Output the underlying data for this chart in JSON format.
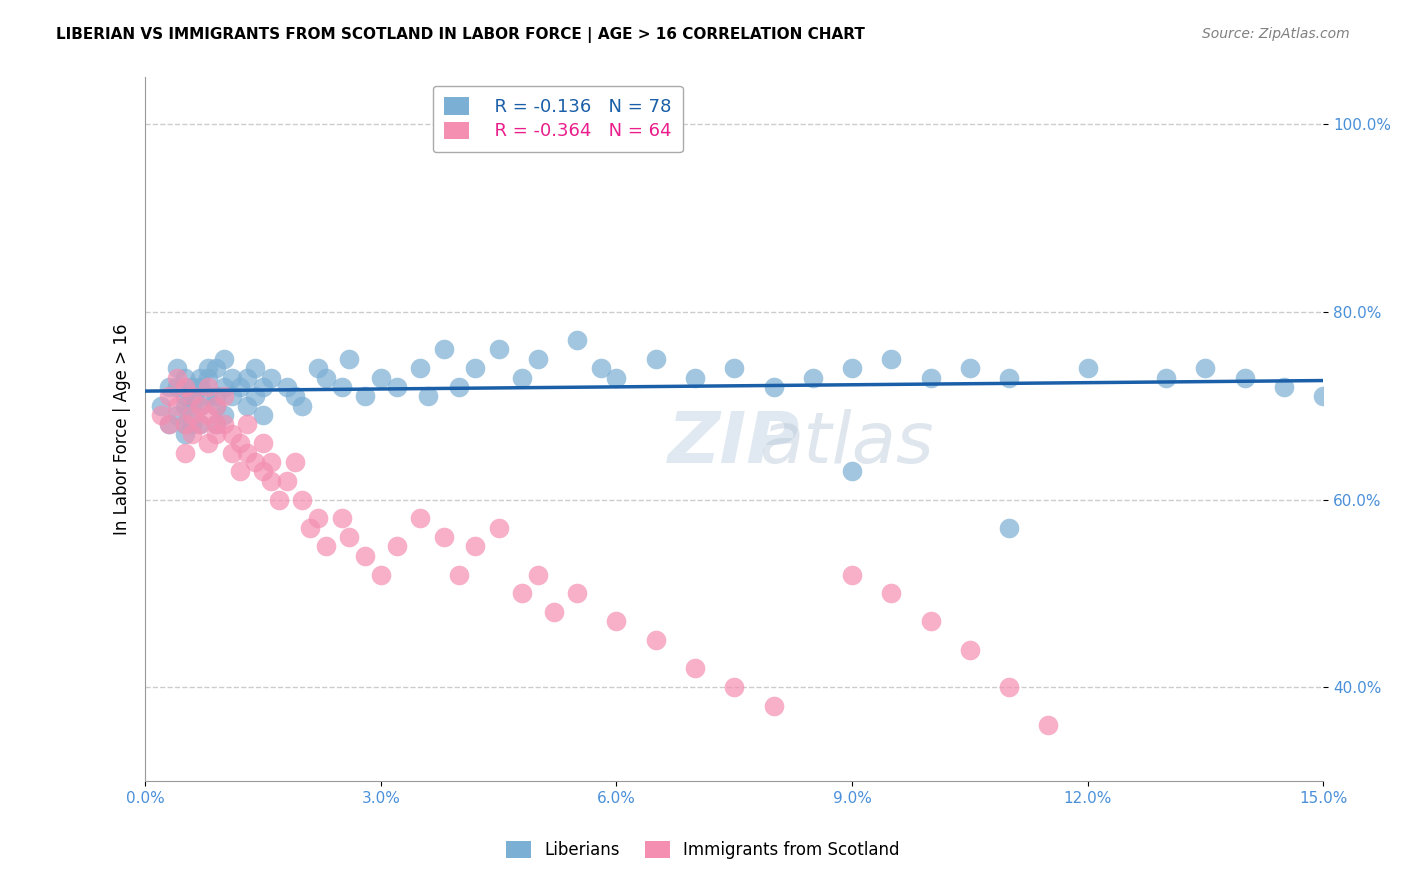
{
  "title": "LIBERIAN VS IMMIGRANTS FROM SCOTLAND IN LABOR FORCE | AGE > 16 CORRELATION CHART",
  "source": "Source: ZipAtlas.com",
  "xlabel_ticks": [
    "0.0%",
    "3.0%",
    "6.0%",
    "9.0%",
    "12.0%",
    "15.0%"
  ],
  "xlabel_vals": [
    0.0,
    0.03,
    0.06,
    0.09,
    0.12,
    0.15
  ],
  "ylabel_ticks": [
    "40.0%",
    "60.0%",
    "80.0%",
    "100.0%"
  ],
  "ylabel_vals": [
    0.4,
    0.6,
    0.8,
    1.0
  ],
  "ylabel_label": "In Labor Force | Age > 16",
  "xlim": [
    0.0,
    0.15
  ],
  "ylim": [
    0.3,
    1.05
  ],
  "blue_R": -0.136,
  "blue_N": 78,
  "pink_R": -0.364,
  "pink_N": 64,
  "legend_label_blue": "R = -0.136   N = 78",
  "legend_label_pink": "R = -0.364   N = 64",
  "legend_label_blue_series": "Liberians",
  "legend_label_pink_series": "Immigrants from Scotland",
  "blue_color": "#7bafd4",
  "pink_color": "#f48fb1",
  "blue_line_color": "#1a5fa8",
  "pink_line_color": "#e91e8c",
  "watermark": "ZIPatlas",
  "blue_x": [
    0.002,
    0.003,
    0.003,
    0.004,
    0.004,
    0.004,
    0.005,
    0.005,
    0.005,
    0.005,
    0.005,
    0.006,
    0.006,
    0.006,
    0.006,
    0.007,
    0.007,
    0.007,
    0.007,
    0.008,
    0.008,
    0.008,
    0.009,
    0.009,
    0.009,
    0.009,
    0.01,
    0.01,
    0.01,
    0.011,
    0.011,
    0.012,
    0.013,
    0.013,
    0.014,
    0.014,
    0.015,
    0.015,
    0.016,
    0.018,
    0.019,
    0.02,
    0.022,
    0.023,
    0.025,
    0.026,
    0.028,
    0.03,
    0.032,
    0.035,
    0.036,
    0.038,
    0.04,
    0.042,
    0.045,
    0.048,
    0.05,
    0.055,
    0.058,
    0.06,
    0.065,
    0.07,
    0.075,
    0.08,
    0.085,
    0.09,
    0.095,
    0.1,
    0.105,
    0.11,
    0.12,
    0.13,
    0.135,
    0.14,
    0.145,
    0.15,
    0.09,
    0.11
  ],
  "blue_y": [
    0.7,
    0.72,
    0.68,
    0.74,
    0.72,
    0.69,
    0.73,
    0.71,
    0.68,
    0.67,
    0.7,
    0.72,
    0.7,
    0.68,
    0.71,
    0.73,
    0.7,
    0.68,
    0.72,
    0.74,
    0.71,
    0.73,
    0.71,
    0.74,
    0.7,
    0.68,
    0.75,
    0.72,
    0.69,
    0.73,
    0.71,
    0.72,
    0.73,
    0.7,
    0.74,
    0.71,
    0.72,
    0.69,
    0.73,
    0.72,
    0.71,
    0.7,
    0.74,
    0.73,
    0.72,
    0.75,
    0.71,
    0.73,
    0.72,
    0.74,
    0.71,
    0.76,
    0.72,
    0.74,
    0.76,
    0.73,
    0.75,
    0.77,
    0.74,
    0.73,
    0.75,
    0.73,
    0.74,
    0.72,
    0.73,
    0.74,
    0.75,
    0.73,
    0.74,
    0.73,
    0.74,
    0.73,
    0.74,
    0.73,
    0.72,
    0.71,
    0.63,
    0.57
  ],
  "pink_x": [
    0.002,
    0.003,
    0.003,
    0.004,
    0.004,
    0.005,
    0.005,
    0.005,
    0.006,
    0.006,
    0.006,
    0.007,
    0.007,
    0.008,
    0.008,
    0.008,
    0.009,
    0.009,
    0.009,
    0.01,
    0.01,
    0.011,
    0.011,
    0.012,
    0.012,
    0.013,
    0.013,
    0.014,
    0.015,
    0.015,
    0.016,
    0.016,
    0.017,
    0.018,
    0.019,
    0.02,
    0.021,
    0.022,
    0.023,
    0.025,
    0.026,
    0.028,
    0.03,
    0.032,
    0.035,
    0.038,
    0.04,
    0.042,
    0.045,
    0.048,
    0.05,
    0.052,
    0.055,
    0.06,
    0.065,
    0.07,
    0.075,
    0.08,
    0.09,
    0.095,
    0.1,
    0.105,
    0.11,
    0.115
  ],
  "pink_y": [
    0.69,
    0.71,
    0.68,
    0.73,
    0.7,
    0.72,
    0.68,
    0.65,
    0.71,
    0.69,
    0.67,
    0.7,
    0.68,
    0.72,
    0.69,
    0.66,
    0.68,
    0.7,
    0.67,
    0.68,
    0.71,
    0.65,
    0.67,
    0.66,
    0.63,
    0.68,
    0.65,
    0.64,
    0.63,
    0.66,
    0.64,
    0.62,
    0.6,
    0.62,
    0.64,
    0.6,
    0.57,
    0.58,
    0.55,
    0.58,
    0.56,
    0.54,
    0.52,
    0.55,
    0.58,
    0.56,
    0.52,
    0.55,
    0.57,
    0.5,
    0.52,
    0.48,
    0.5,
    0.47,
    0.45,
    0.42,
    0.4,
    0.38,
    0.52,
    0.5,
    0.47,
    0.44,
    0.4,
    0.36
  ],
  "grid_color": "#cccccc",
  "background_color": "#ffffff",
  "title_fontsize": 11,
  "axis_label_color": "#4a90d9",
  "tick_label_color": "#4a90d9"
}
